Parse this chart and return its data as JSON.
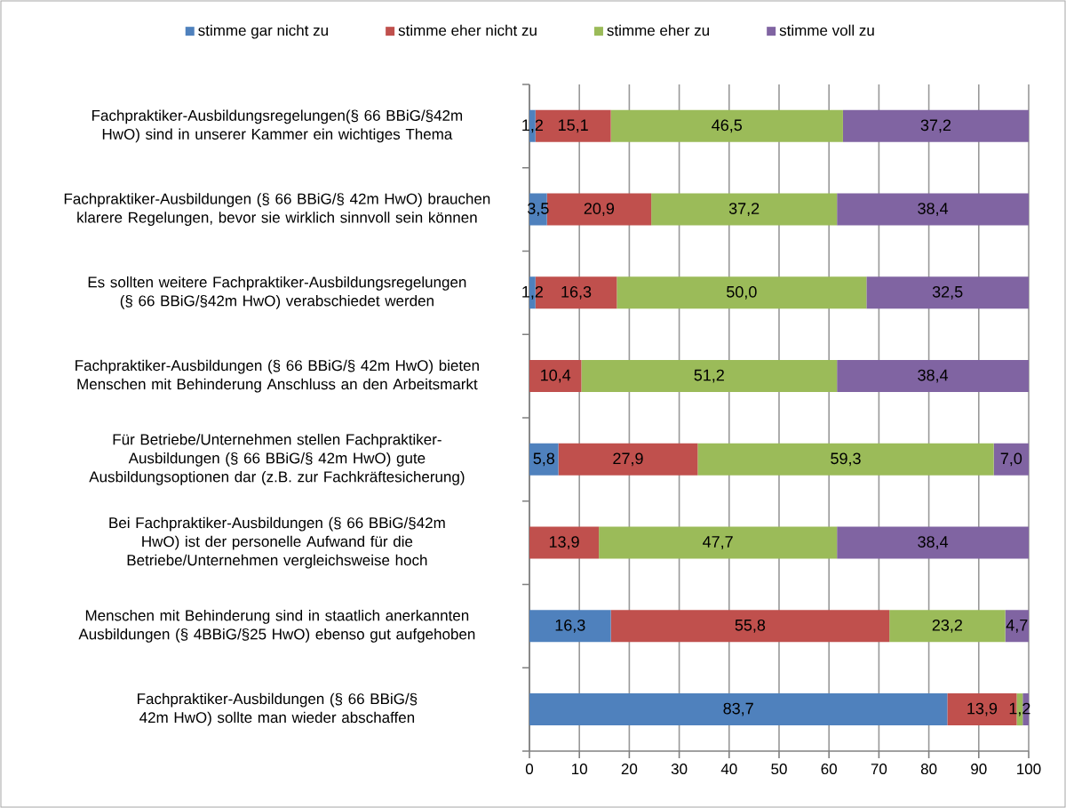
{
  "chart_data": {
    "type": "bar",
    "orientation": "horizontal",
    "stacked": true,
    "categories": [
      "Fachpraktiker-Ausbildungsregelungen(§ 66 BBiG/§42m HwO) sind in unserer Kammer ein wichtiges Thema",
      "Fachpraktiker-Ausbildungen (§ 66 BBiG/§ 42m HwO) brauchen klarere Regelungen, bevor sie wirklich sinnvoll sein können",
      "Es sollten weitere Fachpraktiker-Ausbildungsregelungen (§ 66 BBiG/§42m HwO) verabschiedet werden",
      "Fachpraktiker-Ausbildungen (§ 66 BBiG/§ 42m HwO) bieten Menschen mit Behinderung Anschluss an den Arbeitsmarkt",
      "Für Betriebe/Unternehmen stellen Fachpraktiker-Ausbildungen (§ 66 BBiG/§ 42m HwO) gute Ausbildungsoptionen dar (z.B. zur Fachkräftesicherung)",
      "Bei Fachpraktiker-Ausbildungen (§ 66 BBiG/§42m HwO) ist der personelle Aufwand für die Betriebe/Unternehmen vergleichsweise hoch",
      "Menschen mit Behinderung sind in staatlich anerkannten Ausbildungen (§ 4BBiG/§25 HwO) ebenso gut aufgehoben",
      "Fachpraktiker-Ausbildungen (§ 66 BBiG/§ 42m HwO) sollte man wieder abschaffen"
    ],
    "series": [
      {
        "name": "stimme gar nicht zu",
        "color": "#4f81bd",
        "values": [
          1.2,
          3.5,
          1.2,
          0,
          5.8,
          0,
          16.3,
          83.7
        ],
        "value_labels": [
          "1,2",
          "3,5",
          "1,2",
          null,
          "5,8",
          null,
          "16,3",
          "83,7"
        ]
      },
      {
        "name": "stimme eher nicht zu",
        "color": "#c0504d",
        "values": [
          15.1,
          20.9,
          16.3,
          10.4,
          27.9,
          13.9,
          55.8,
          13.9
        ],
        "value_labels": [
          "15,1",
          "20,9",
          "16,3",
          "10,4",
          "27,9",
          "13,9",
          "55,8",
          "13,9"
        ]
      },
      {
        "name": "stimme eher zu",
        "color": "#9bbb59",
        "values": [
          46.5,
          37.2,
          50.0,
          51.2,
          59.3,
          47.7,
          23.2,
          1.2
        ],
        "value_labels": [
          "46,5",
          "37,2",
          "50,0",
          "51,2",
          "59,3",
          "47,7",
          "23,2",
          "1,2"
        ]
      },
      {
        "name": "stimme voll zu",
        "color": "#8064a2",
        "values": [
          37.2,
          38.4,
          32.5,
          38.4,
          7.0,
          38.4,
          4.7,
          1.2
        ],
        "value_labels": [
          "37,2",
          "38,4",
          "32,5",
          "38,4",
          "7,0",
          "38,4",
          "4,7",
          null
        ]
      }
    ],
    "xlim": [
      0,
      100
    ],
    "xticks": [
      0,
      10,
      20,
      30,
      40,
      50,
      60,
      70,
      80,
      90,
      100
    ],
    "grid": "x",
    "legend": "top"
  }
}
